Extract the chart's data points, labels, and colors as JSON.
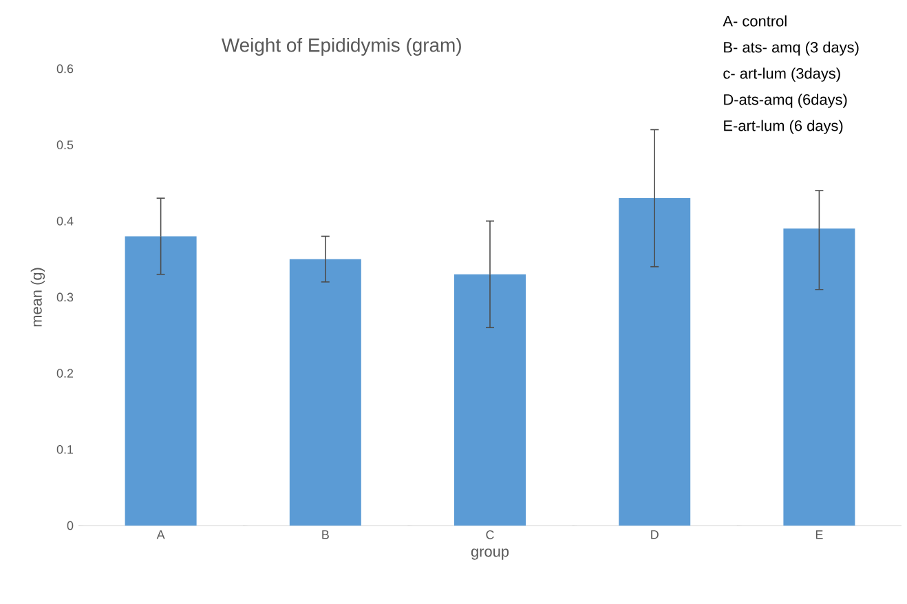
{
  "chart_data": {
    "type": "bar",
    "title": "Weight of Epididymis (gram)",
    "xlabel": "group",
    "ylabel": "mean (g)",
    "categories": [
      "A",
      "B",
      "C",
      "D",
      "E"
    ],
    "values": [
      0.38,
      0.35,
      0.33,
      0.43,
      0.39
    ],
    "errors": [
      0.05,
      0.03,
      0.07,
      0.09,
      [
        0.31,
        0.44
      ]
    ],
    "color": "#5b9bd5",
    "ylim": [
      0,
      0.6
    ],
    "yticks": [
      0,
      0.1,
      0.2,
      0.3,
      0.4,
      0.5,
      0.6
    ],
    "annotations": [
      "A- control",
      "B- ats- amq  (3 days)",
      "c- art-lum (3days)",
      "D-ats-amq (6days)",
      "E-art-lum (6 days)"
    ]
  }
}
